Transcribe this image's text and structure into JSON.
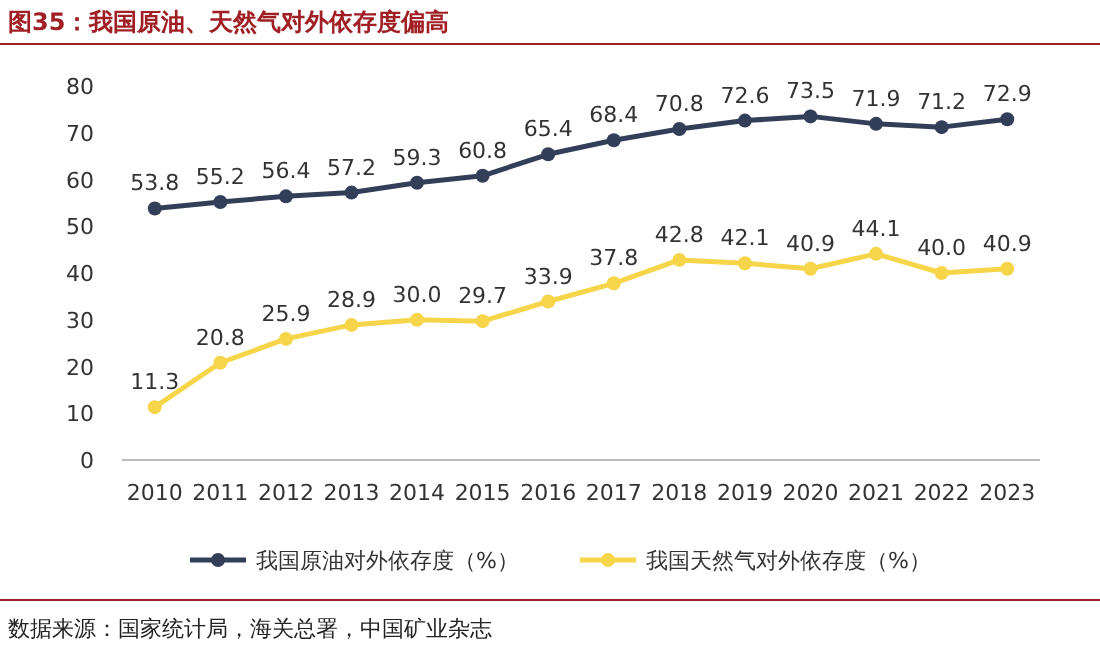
{
  "chart_data": {
    "type": "line",
    "title": "图35：我国原油、天然气对外依存度偏高",
    "categories": [
      "2010",
      "2011",
      "2012",
      "2013",
      "2014",
      "2015",
      "2016",
      "2017",
      "2018",
      "2019",
      "2020",
      "2021",
      "2022",
      "2023"
    ],
    "series": [
      {
        "name": "我国原油对外依存度（%）",
        "color": "#333f58",
        "values": [
          53.8,
          55.2,
          56.4,
          57.2,
          59.3,
          60.8,
          65.4,
          68.4,
          70.8,
          72.6,
          73.5,
          71.9,
          71.2,
          72.9
        ],
        "value_labels": [
          "53.8",
          "55.2",
          "56.4",
          "57.2",
          "59.3",
          "60.8",
          "65.4",
          "68.4",
          "70.8",
          "72.6",
          "73.5",
          "71.9",
          "71.2",
          "72.9"
        ]
      },
      {
        "name": "我国天然气对外依存度（%）",
        "color": "#f7d54a",
        "values": [
          11.3,
          20.8,
          25.9,
          28.9,
          30.0,
          29.7,
          33.9,
          37.8,
          42.8,
          42.1,
          40.9,
          44.1,
          40.0,
          40.9
        ],
        "value_labels": [
          "11.3",
          "20.8",
          "25.9",
          "28.9",
          "30.0",
          "29.7",
          "33.9",
          "37.8",
          "42.8",
          "42.1",
          "40.9",
          "44.1",
          "40.0",
          "40.9"
        ]
      }
    ],
    "ylim": [
      0,
      80
    ],
    "yticks": [
      0,
      10,
      20,
      30,
      40,
      50,
      60,
      70,
      80
    ],
    "grid": false,
    "legend": "bottom",
    "marker": "circle",
    "line_style": "solid",
    "annotations": [
      "数据来源：国家统计局，海关总署，中国矿业杂志"
    ]
  }
}
